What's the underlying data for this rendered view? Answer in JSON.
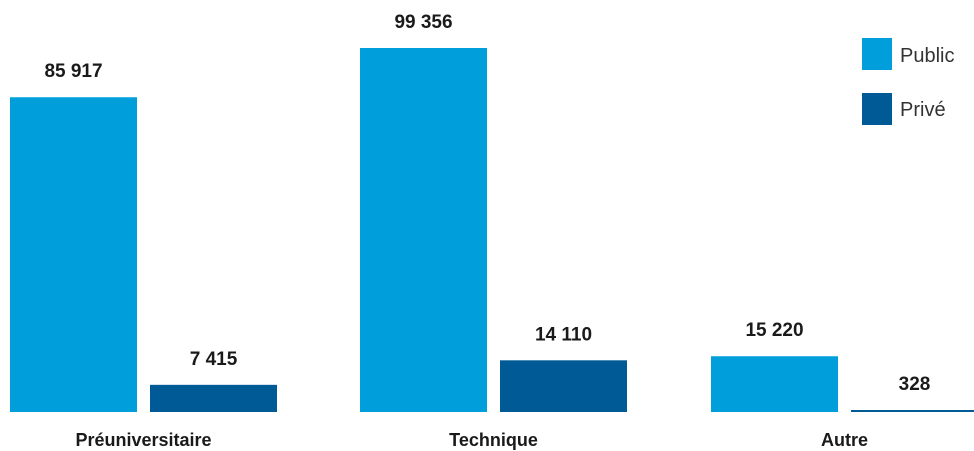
{
  "chart_data": {
    "type": "bar",
    "categories": [
      "Préuniversitaire",
      "Technique",
      "Autre"
    ],
    "series": [
      {
        "name": "Public",
        "values": [
          85917,
          99356,
          15220
        ],
        "labels": [
          "85 917",
          "99 356",
          "15 220"
        ],
        "color": "#009fdb"
      },
      {
        "name": "Privé",
        "values": [
          7415,
          14110,
          328
        ],
        "labels": [
          "7 415",
          "14 110",
          "328"
        ],
        "color": "#005a95"
      }
    ],
    "title": "",
    "xlabel": "",
    "ylabel": "",
    "ylim": [
      0,
      99356
    ],
    "grid": false,
    "legend": "top-right"
  }
}
